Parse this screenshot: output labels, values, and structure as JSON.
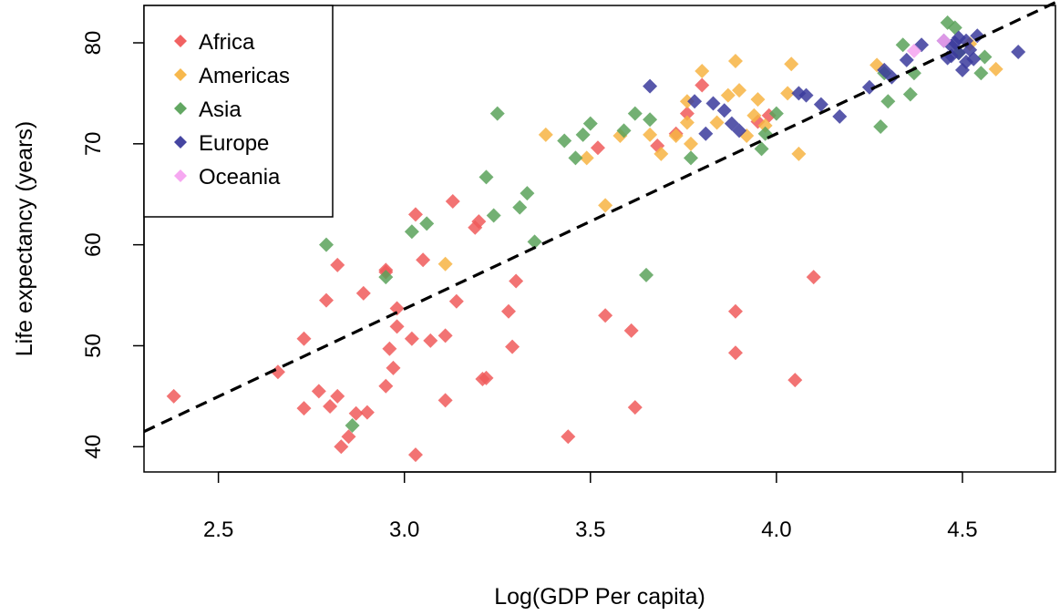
{
  "chart_data": {
    "type": "scatter",
    "title": "",
    "xlabel": "Log(GDP Per capita)",
    "ylabel": "Life expectancy (years)",
    "xlim": [
      2.3,
      4.75
    ],
    "ylim": [
      37.5,
      83.7
    ],
    "x_ticks": [
      "2.5",
      "3.0",
      "3.5",
      "4.0",
      "4.5"
    ],
    "y_ticks": [
      "40",
      "50",
      "60",
      "70",
      "80"
    ],
    "grid": false,
    "legend_position": "top-left",
    "trend_line": {
      "style": "dashed",
      "color": "#000000",
      "points": [
        [
          2.3,
          41.5
        ],
        [
          4.75,
          84.0
        ]
      ]
    },
    "series": [
      {
        "name": "Africa",
        "color": "#f05a5a",
        "points": [
          [
            2.38,
            45.0
          ],
          [
            2.66,
            47.4
          ],
          [
            2.73,
            50.7
          ],
          [
            2.73,
            43.8
          ],
          [
            2.77,
            45.5
          ],
          [
            2.79,
            54.5
          ],
          [
            2.8,
            44.0
          ],
          [
            2.82,
            58.0
          ],
          [
            2.82,
            45.0
          ],
          [
            2.83,
            40.0
          ],
          [
            2.85,
            41.0
          ],
          [
            2.87,
            43.3
          ],
          [
            2.89,
            55.2
          ],
          [
            2.9,
            43.4
          ],
          [
            2.95,
            57.5
          ],
          [
            2.95,
            57.3
          ],
          [
            2.95,
            46.0
          ],
          [
            2.96,
            49.7
          ],
          [
            2.97,
            47.8
          ],
          [
            2.98,
            51.9
          ],
          [
            2.98,
            53.7
          ],
          [
            3.02,
            50.7
          ],
          [
            3.03,
            63.0
          ],
          [
            3.03,
            39.2
          ],
          [
            3.05,
            58.5
          ],
          [
            3.07,
            50.5
          ],
          [
            3.11,
            51.0
          ],
          [
            3.11,
            44.6
          ],
          [
            3.13,
            64.3
          ],
          [
            3.14,
            54.4
          ],
          [
            3.19,
            61.7
          ],
          [
            3.2,
            62.3
          ],
          [
            3.21,
            46.7
          ],
          [
            3.22,
            46.8
          ],
          [
            3.28,
            53.4
          ],
          [
            3.29,
            49.9
          ],
          [
            3.3,
            56.4
          ],
          [
            3.44,
            41.0
          ],
          [
            3.52,
            69.6
          ],
          [
            3.54,
            53.0
          ],
          [
            3.61,
            51.5
          ],
          [
            3.62,
            43.9
          ],
          [
            3.68,
            69.8
          ],
          [
            3.73,
            71.0
          ],
          [
            3.76,
            73.0
          ],
          [
            3.8,
            75.8
          ],
          [
            3.89,
            49.3
          ],
          [
            3.89,
            53.4
          ],
          [
            3.95,
            72.2
          ],
          [
            3.98,
            72.8
          ],
          [
            4.05,
            46.6
          ],
          [
            4.1,
            56.8
          ]
        ]
      },
      {
        "name": "Americas",
        "color": "#f7b443",
        "points": [
          [
            3.11,
            58.1
          ],
          [
            3.38,
            70.9
          ],
          [
            3.49,
            68.6
          ],
          [
            3.54,
            63.9
          ],
          [
            3.58,
            70.8
          ],
          [
            3.66,
            70.9
          ],
          [
            3.69,
            69.0
          ],
          [
            3.73,
            70.8
          ],
          [
            3.76,
            72.1
          ],
          [
            3.76,
            74.2
          ],
          [
            3.77,
            70.0
          ],
          [
            3.8,
            77.2
          ],
          [
            3.84,
            72.1
          ],
          [
            3.87,
            74.8
          ],
          [
            3.89,
            78.2
          ],
          [
            3.9,
            75.3
          ],
          [
            3.92,
            70.8
          ],
          [
            3.94,
            72.8
          ],
          [
            3.95,
            74.4
          ],
          [
            3.97,
            71.8
          ],
          [
            4.03,
            75.0
          ],
          [
            4.04,
            77.9
          ],
          [
            4.06,
            69.0
          ],
          [
            4.27,
            77.8
          ],
          [
            4.52,
            79.9
          ],
          [
            4.59,
            77.4
          ]
        ]
      },
      {
        "name": "Asia",
        "color": "#5aa25a",
        "points": [
          [
            2.79,
            60.0
          ],
          [
            2.86,
            42.1
          ],
          [
            2.95,
            56.8
          ],
          [
            3.02,
            61.3
          ],
          [
            3.06,
            62.1
          ],
          [
            3.22,
            66.7
          ],
          [
            3.24,
            62.9
          ],
          [
            3.25,
            73.0
          ],
          [
            3.31,
            63.7
          ],
          [
            3.33,
            65.1
          ],
          [
            3.35,
            60.3
          ],
          [
            3.43,
            70.3
          ],
          [
            3.46,
            68.6
          ],
          [
            3.48,
            70.9
          ],
          [
            3.5,
            72.0
          ],
          [
            3.59,
            71.3
          ],
          [
            3.62,
            73.0
          ],
          [
            3.65,
            57.0
          ],
          [
            3.66,
            72.4
          ],
          [
            3.77,
            68.6
          ],
          [
            3.96,
            69.5
          ],
          [
            3.97,
            71.0
          ],
          [
            4.0,
            73.0
          ],
          [
            4.28,
            71.7
          ],
          [
            4.29,
            77.0
          ],
          [
            4.3,
            74.2
          ],
          [
            4.34,
            79.8
          ],
          [
            4.36,
            74.9
          ],
          [
            4.37,
            77.0
          ],
          [
            4.46,
            82.0
          ],
          [
            4.48,
            81.5
          ],
          [
            4.49,
            79.0
          ],
          [
            4.55,
            77.0
          ],
          [
            4.56,
            78.6
          ]
        ]
      },
      {
        "name": "Europe",
        "color": "#3b3b9c",
        "points": [
          [
            3.66,
            75.7
          ],
          [
            3.78,
            74.2
          ],
          [
            3.81,
            71.0
          ],
          [
            3.83,
            74.0
          ],
          [
            3.86,
            73.3
          ],
          [
            3.88,
            72.0
          ],
          [
            3.9,
            71.3
          ],
          [
            4.06,
            75.0
          ],
          [
            4.08,
            74.8
          ],
          [
            4.12,
            73.9
          ],
          [
            4.17,
            72.7
          ],
          [
            4.25,
            75.6
          ],
          [
            4.29,
            77.3
          ],
          [
            4.31,
            76.6
          ],
          [
            4.35,
            78.3
          ],
          [
            4.39,
            79.8
          ],
          [
            4.45,
            80.2
          ],
          [
            4.46,
            78.5
          ],
          [
            4.47,
            79.7
          ],
          [
            4.47,
            78.7
          ],
          [
            4.48,
            80.0
          ],
          [
            4.49,
            80.5
          ],
          [
            4.49,
            79.0
          ],
          [
            4.5,
            77.3
          ],
          [
            4.51,
            78.1
          ],
          [
            4.51,
            80.2
          ],
          [
            4.52,
            79.3
          ],
          [
            4.53,
            78.4
          ],
          [
            4.54,
            80.7
          ],
          [
            4.65,
            79.1
          ]
        ]
      },
      {
        "name": "Oceania",
        "color": "#f5a3f0",
        "points": [
          [
            4.37,
            79.2
          ],
          [
            4.45,
            80.2
          ]
        ]
      }
    ]
  }
}
